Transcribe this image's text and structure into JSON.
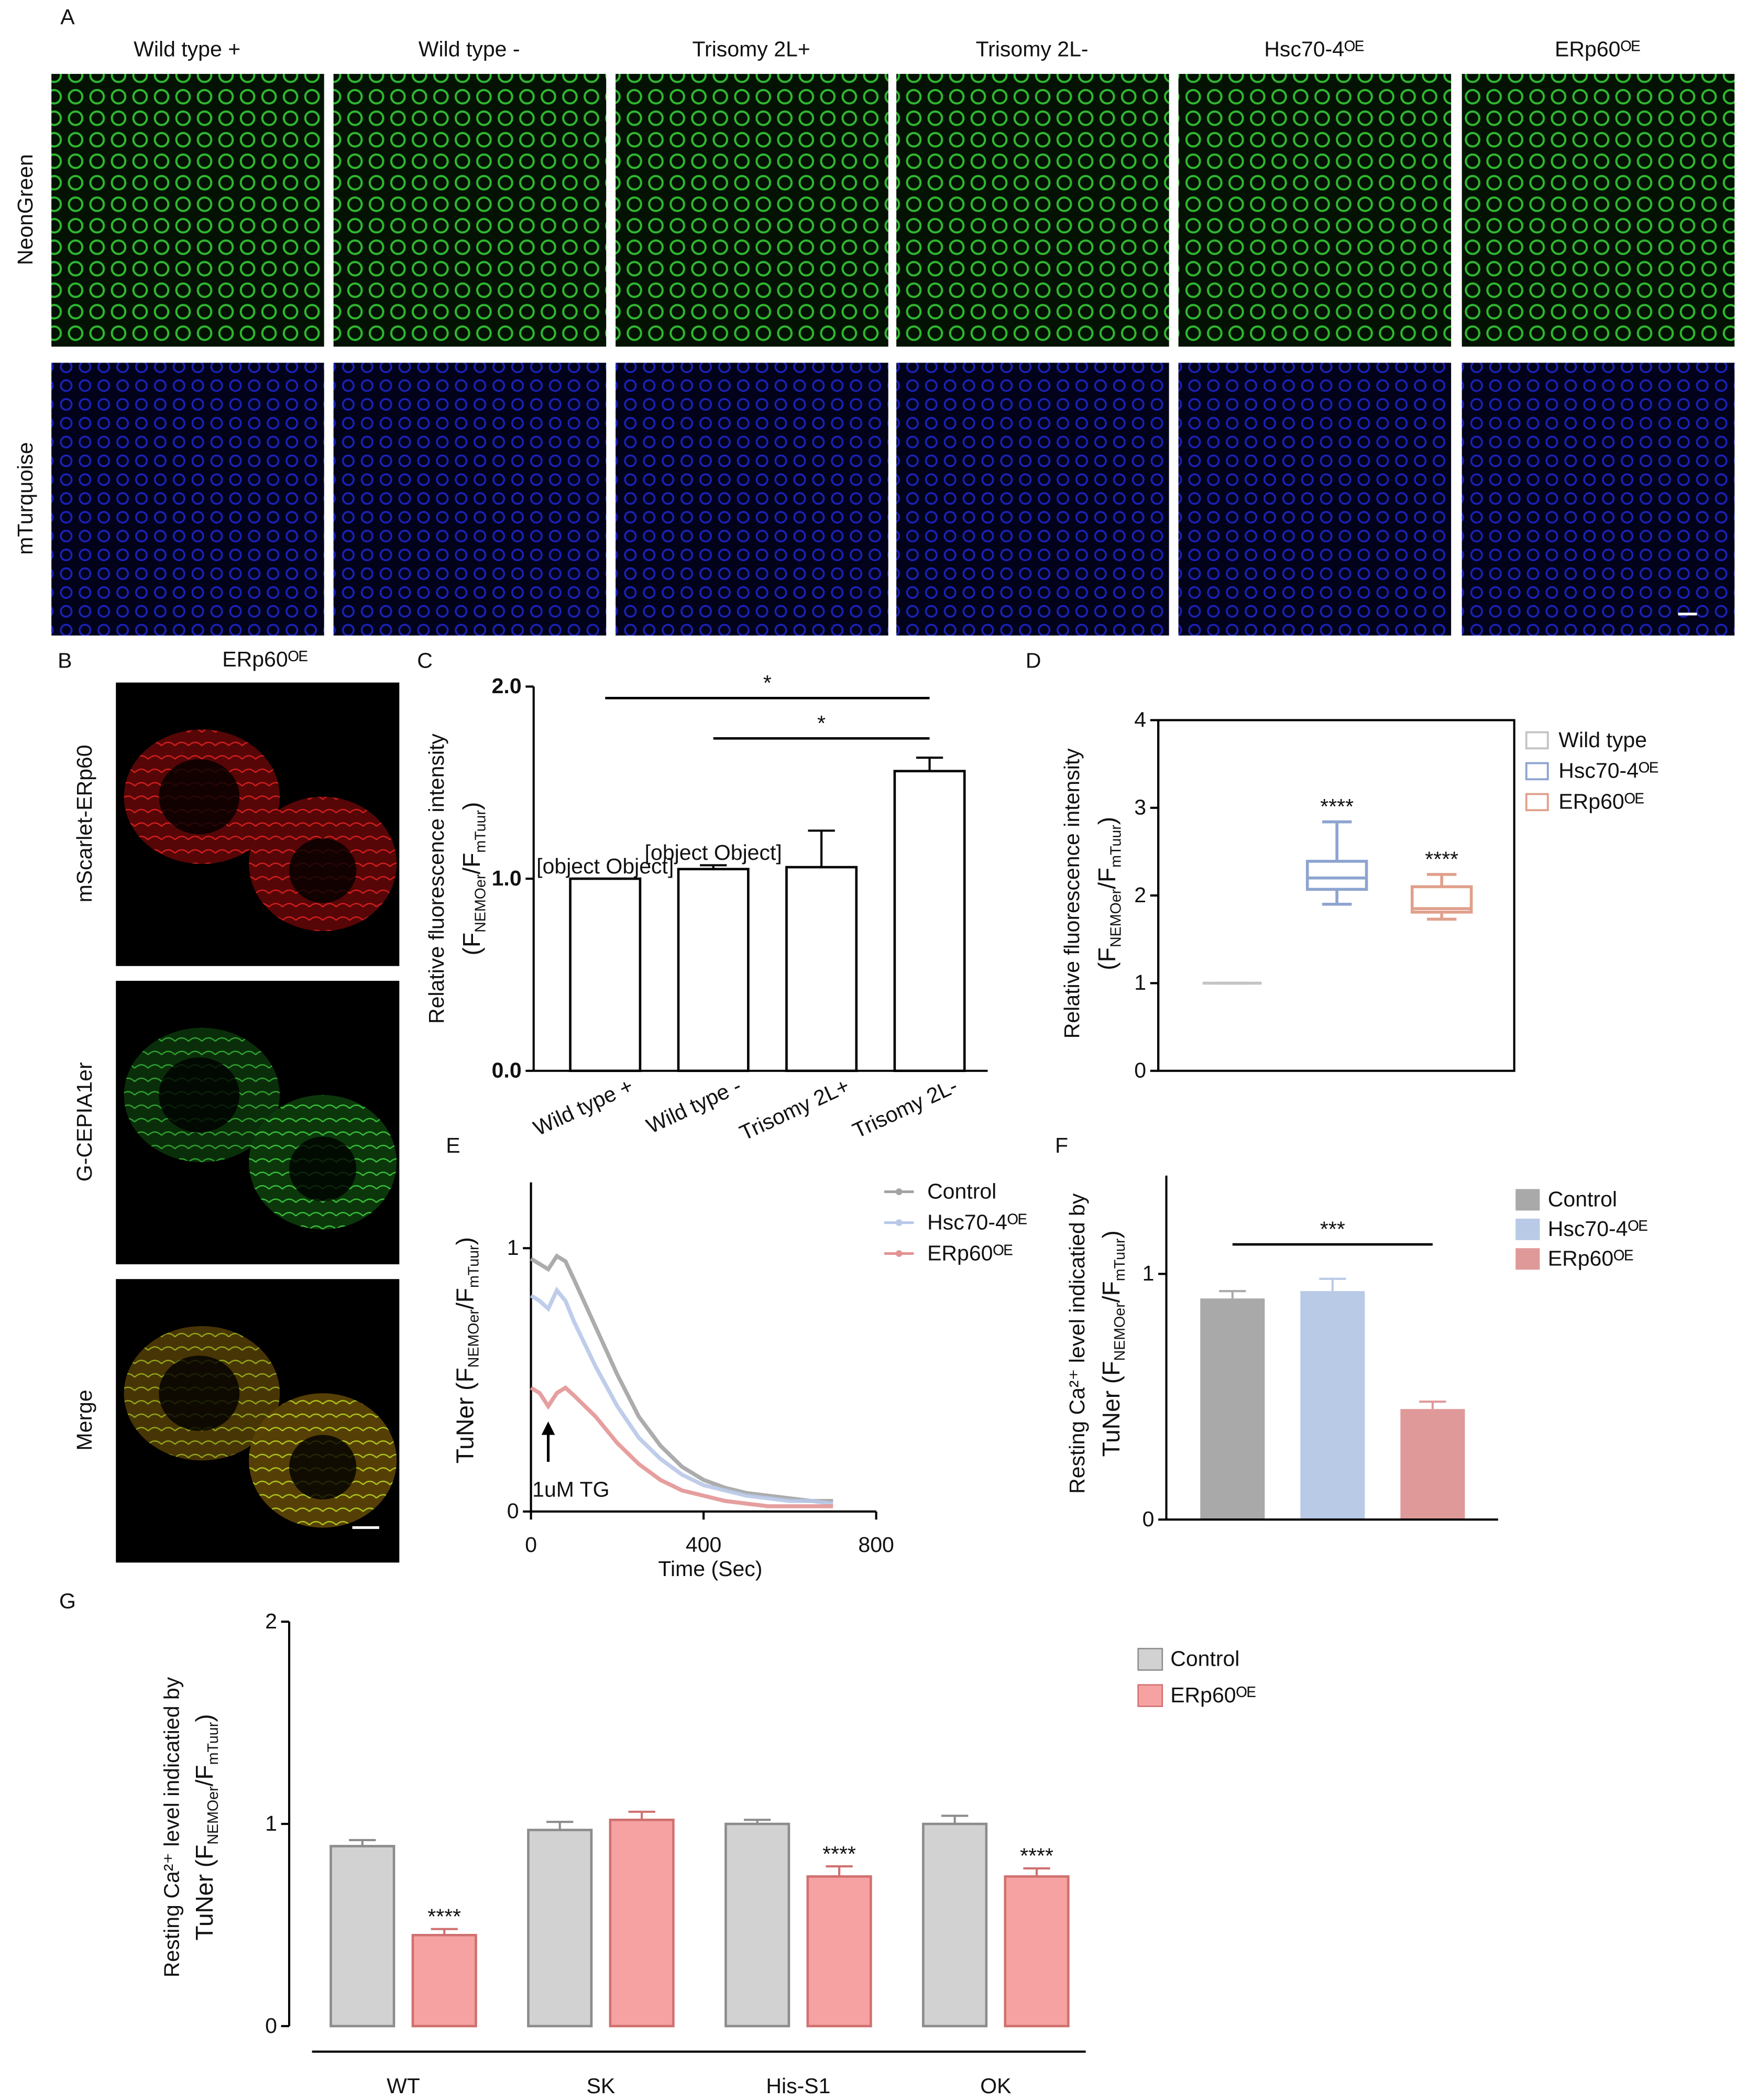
{
  "panel_labels": [
    "A",
    "B",
    "C",
    "D",
    "E",
    "F",
    "G"
  ],
  "images": {
    "a": {
      "columns": [
        "Wild type +",
        "Wild type -",
        "Trisomy 2L+",
        "Trisomy 2L-",
        "Hsc70-4ᴼᴱ",
        "ERp60ᴼᴱ"
      ],
      "rows": [
        "NeonGreen",
        "mTurquoise"
      ]
    },
    "b": {
      "title": "ERp60ᴼᴱ",
      "rows": [
        "mScarlet-ERp60",
        "G-CEPIA1er",
        "Merge"
      ]
    }
  },
  "chart_data": [
    {
      "type": "bar",
      "categories": [
        "Wild type +",
        "Wild type -",
        "Trisomy 2L+",
        "Trisomy 2L-"
      ],
      "values": [
        1.0,
        1.05,
        1.06,
        1.56
      ],
      "errors": [
        0,
        0.02,
        0.19,
        0.07
      ],
      "color": "#ffffff",
      "edgecolor": "#000000",
      "ylabel": [
        "Relative fluorescence intensity",
        [
          "(F",
          "NEMOer",
          "/F",
          "mTuur",
          ")"
        ]
      ],
      "ylim": [
        0,
        2
      ],
      "yticks": [
        {
          "value": 0,
          "label": "0.0"
        },
        {
          "value": 1,
          "label": "1.0"
        },
        {
          "value": 2,
          "label": "2.0"
        }
      ],
      "significance": [
        {
          "from": 0,
          "to": 3,
          "y": 1.94,
          "label": "*"
        },
        {
          "from": 1,
          "to": 3,
          "y": 1.73,
          "label": "*"
        }
      ]
    },
    {
      "type": "box",
      "series": [
        {
          "name": "Wild type",
          "color": "#c4c4c4",
          "min": 1,
          "q1": 1,
          "median": 1,
          "q3": 1,
          "max": 1,
          "label": null
        },
        {
          "name": "Hsc70-4ᴼᴱ",
          "color": "#8ea4d0",
          "min": 1.9,
          "q1": 2.07,
          "median": 2.2,
          "q3": 2.39,
          "max": 2.84,
          "label": "****"
        },
        {
          "name": "ERp60ᴼᴱ",
          "color": "#e0a08c",
          "min": 1.73,
          "q1": 1.81,
          "median": 1.85,
          "q3": 2.1,
          "max": 2.24,
          "label": "****"
        }
      ],
      "ylabel": [
        "Relative fluorescence intensity",
        [
          "(F",
          "NEMOer",
          "/F",
          "mTuur",
          ")"
        ]
      ],
      "ylim": [
        0,
        4
      ],
      "yticks": [
        0,
        1,
        2,
        3,
        4
      ],
      "legend": "upper right outside"
    },
    {
      "type": "line",
      "x": [
        0,
        20,
        40,
        60,
        80,
        100,
        150,
        200,
        250,
        300,
        350,
        400,
        450,
        500,
        550,
        600,
        650,
        700
      ],
      "series": [
        {
          "name": "Control",
          "color": "#a3a3a3",
          "values": [
            0.96,
            0.94,
            0.92,
            0.97,
            0.95,
            0.88,
            0.7,
            0.52,
            0.36,
            0.25,
            0.17,
            0.12,
            0.09,
            0.07,
            0.06,
            0.05,
            0.04,
            0.04
          ]
        },
        {
          "name": "Hsc70-4ᴼᴱ",
          "color": "#b8c8e8",
          "values": [
            0.82,
            0.8,
            0.77,
            0.84,
            0.8,
            0.72,
            0.55,
            0.4,
            0.28,
            0.2,
            0.14,
            0.1,
            0.08,
            0.06,
            0.05,
            0.04,
            0.04,
            0.03
          ]
        },
        {
          "name": "ERp60ᴼᴱ",
          "color": "#e39393",
          "values": [
            0.47,
            0.45,
            0.4,
            0.45,
            0.47,
            0.44,
            0.36,
            0.26,
            0.18,
            0.12,
            0.08,
            0.06,
            0.04,
            0.03,
            0.02,
            0.02,
            0.02,
            0.02
          ]
        }
      ],
      "xlabel": "Time (Sec)",
      "ylabel": [
        [
          "TuNer (F",
          "NEMOer",
          "/F",
          "mTuur",
          ")"
        ]
      ],
      "xlim": [
        0,
        800
      ],
      "xticks": [
        0,
        400,
        800
      ],
      "ylim": [
        0,
        1.25
      ],
      "yticks": [
        0,
        1
      ],
      "annotation": {
        "text": "1uM TG",
        "x": 40
      }
    },
    {
      "type": "bar",
      "series": [
        {
          "name": "Control",
          "color": "#a9a9a9",
          "values": [
            0.9
          ],
          "errors": [
            0.03
          ]
        },
        {
          "name": "Hsc70-4ᴼᴱ",
          "color": "#b9cae6",
          "values": [
            0.93
          ],
          "errors": [
            0.05
          ]
        },
        {
          "name": "ERp60ᴼᴱ",
          "color": "#df9999",
          "values": [
            0.45
          ],
          "errors": [
            0.03
          ]
        }
      ],
      "ylabel": [
        "Resting Ca²⁺ level indicatied by",
        [
          "TuNer (F",
          "NEMOer",
          "/F",
          "mTuur",
          ")"
        ]
      ],
      "ylim": [
        0,
        1.4
      ],
      "yticks": [
        0,
        1
      ],
      "significance": [
        {
          "from": 0,
          "to": 2,
          "y": 1.12,
          "label": "***"
        }
      ]
    },
    {
      "type": "bar",
      "categories": [
        "WT",
        "SK",
        "His-S1",
        "OK"
      ],
      "series": [
        {
          "name": "Control",
          "color": "#d2d2d2",
          "edgecolor": "#8c8c8c",
          "values": [
            0.89,
            0.97,
            1.0,
            1.0
          ],
          "errors": [
            0.03,
            0.04,
            0.02,
            0.04
          ],
          "significance": [
            null,
            null,
            null,
            null
          ]
        },
        {
          "name": "ERp60ᴼᴱ",
          "color": "#f6a2a2",
          "edgecolor": "#d07070",
          "values": [
            0.45,
            1.02,
            0.74,
            0.74
          ],
          "errors": [
            0.03,
            0.04,
            0.05,
            0.04
          ],
          "significance": [
            "****",
            null,
            "****",
            "****"
          ]
        }
      ],
      "ylabel": [
        "Resting Ca²⁺ level indicatied by",
        [
          "TuNer (F",
          "NEMOer",
          "/F",
          "mTuur",
          ")"
        ]
      ],
      "ylim": [
        0,
        2
      ],
      "yticks": [
        0,
        1,
        2
      ]
    }
  ]
}
